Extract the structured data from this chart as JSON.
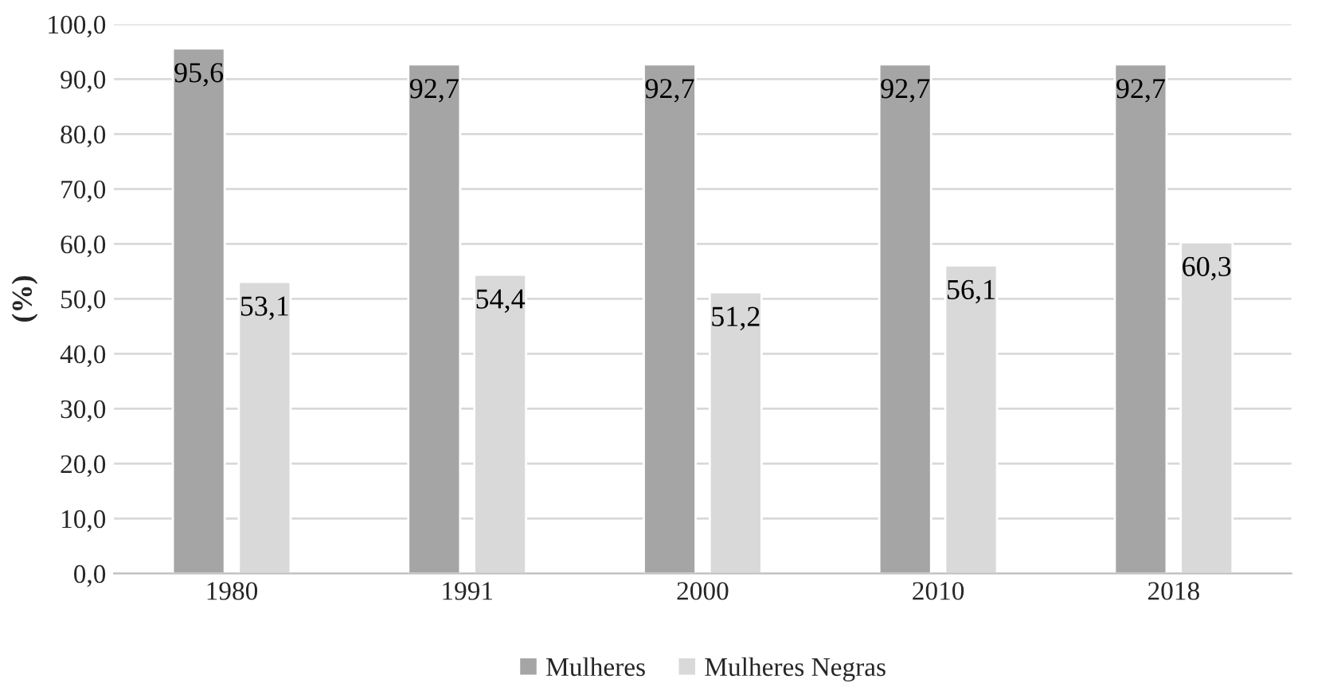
{
  "chart_data": {
    "type": "bar",
    "ylabel": "(%)",
    "categories": [
      "1980",
      "1991",
      "2000",
      "2010",
      "2018"
    ],
    "series": [
      {
        "name": "Mulheres",
        "color": "#a5a5a5",
        "values": [
          95.6,
          92.7,
          92.7,
          92.7,
          92.7
        ],
        "value_labels": [
          "95,6",
          "92,7",
          "92,7",
          "92,7",
          "92,7"
        ]
      },
      {
        "name": "Mulheres Negras",
        "color": "#d9d9d9",
        "values": [
          53.1,
          54.4,
          51.2,
          56.1,
          60.3
        ],
        "value_labels": [
          "53,1",
          "54,4",
          "51,2",
          "56,1",
          "60,3"
        ]
      }
    ],
    "ylim": [
      0,
      100
    ],
    "yticks": [
      {
        "value": 0,
        "label": "0,0"
      },
      {
        "value": 10,
        "label": "10,0"
      },
      {
        "value": 20,
        "label": "20,0"
      },
      {
        "value": 30,
        "label": "30,0"
      },
      {
        "value": 40,
        "label": "40,0"
      },
      {
        "value": 50,
        "label": "50,0"
      },
      {
        "value": 60,
        "label": "60,0"
      },
      {
        "value": 70,
        "label": "70,0"
      },
      {
        "value": 80,
        "label": "80,0"
      },
      {
        "value": 90,
        "label": "90,0"
      },
      {
        "value": 100,
        "label": "100,0"
      }
    ],
    "grid": "y",
    "legend": "bottom"
  }
}
